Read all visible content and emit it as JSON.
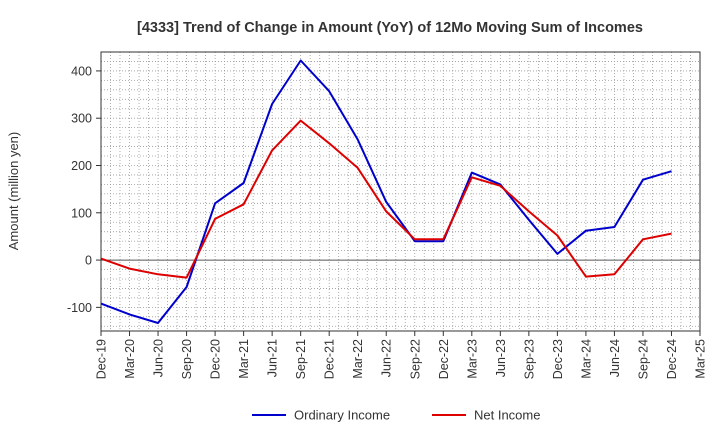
{
  "chart_data": {
    "type": "line",
    "title": "[4333]  Trend of Change in Amount (YoY) of 12Mo Moving Sum of Incomes",
    "xlabel": "",
    "ylabel": "Amount (million yen)",
    "categories": [
      "Dec-19",
      "Mar-20",
      "Jun-20",
      "Sep-20",
      "Dec-20",
      "Mar-21",
      "Jun-21",
      "Sep-21",
      "Dec-21",
      "Mar-22",
      "Jun-22",
      "Sep-22",
      "Dec-22",
      "Mar-23",
      "Jun-23",
      "Sep-23",
      "Dec-23",
      "Mar-24",
      "Jun-24",
      "Sep-24",
      "Dec-24",
      "Mar-25"
    ],
    "ylim": [
      -150,
      440
    ],
    "yticks": [
      -100,
      0,
      100,
      200,
      300,
      400
    ],
    "grid": true,
    "legend_position": "bottom",
    "series": [
      {
        "name": "Ordinary Income",
        "color": "#0000cc",
        "values": [
          -92,
          -115,
          -133,
          -57,
          120,
          163,
          330,
          422,
          357,
          255,
          123,
          40,
          40,
          185,
          160,
          85,
          13,
          62,
          70,
          170,
          188,
          null
        ]
      },
      {
        "name": "Net Income",
        "color": "#dd0000",
        "values": [
          3,
          -18,
          -30,
          -37,
          87,
          118,
          232,
          295,
          247,
          195,
          103,
          44,
          44,
          175,
          157,
          103,
          52,
          -35,
          -30,
          44,
          56,
          null
        ]
      }
    ]
  }
}
